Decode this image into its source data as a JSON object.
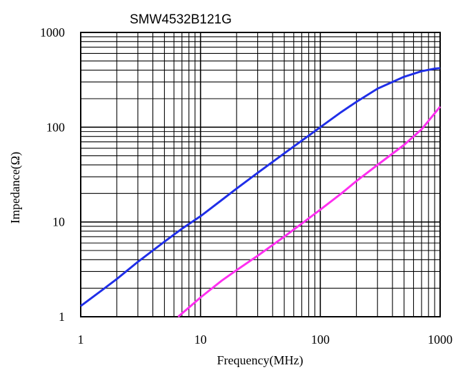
{
  "chart_data": {
    "type": "line",
    "title": "SMW4532B121G",
    "xlabel": "Frequency(MHz)",
    "ylabel": "Impedance(Ω)",
    "xscale": "log",
    "yscale": "log",
    "xlim": [
      1,
      1000
    ],
    "ylim": [
      1,
      1000
    ],
    "grid": true,
    "xticks": [
      "1",
      "10",
      "100",
      "1000"
    ],
    "yticks": [
      "1",
      "10",
      "100",
      "1000"
    ],
    "colors": {
      "series1": "#1f2ee8",
      "series2": "#ff2ef0"
    },
    "series": [
      {
        "points": [
          [
            1,
            1.3
          ],
          [
            1.5,
            1.9
          ],
          [
            2,
            2.5
          ],
          [
            3,
            3.8
          ],
          [
            5,
            6.2
          ],
          [
            7,
            8.5
          ],
          [
            10,
            11.5
          ],
          [
            15,
            17
          ],
          [
            20,
            22.5
          ],
          [
            30,
            33
          ],
          [
            50,
            53
          ],
          [
            70,
            72
          ],
          [
            100,
            100
          ],
          [
            150,
            145
          ],
          [
            200,
            185
          ],
          [
            300,
            255
          ],
          [
            500,
            340
          ],
          [
            700,
            390
          ],
          [
            900,
            415
          ],
          [
            1000,
            420
          ]
        ]
      },
      {
        "points": [
          [
            6.5,
            1.0
          ],
          [
            8,
            1.25
          ],
          [
            10,
            1.6
          ],
          [
            15,
            2.4
          ],
          [
            20,
            3.1
          ],
          [
            30,
            4.4
          ],
          [
            50,
            7.0
          ],
          [
            70,
            9.6
          ],
          [
            100,
            13.5
          ],
          [
            150,
            20
          ],
          [
            200,
            27
          ],
          [
            300,
            40
          ],
          [
            500,
            65
          ],
          [
            700,
            95
          ],
          [
            1000,
            165
          ]
        ]
      }
    ]
  }
}
